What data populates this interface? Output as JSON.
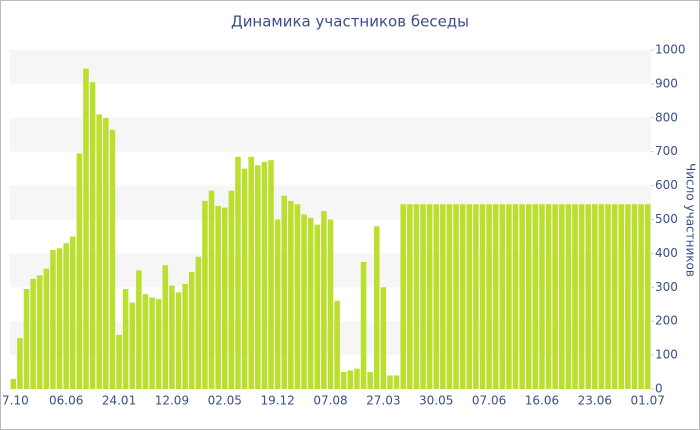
{
  "chart_data": {
    "type": "bar",
    "title": "Динамика участников беседы",
    "y_label": "Число участников",
    "categories": [
      "7.10",
      null,
      null,
      null,
      null,
      null,
      null,
      null,
      "06.06",
      null,
      null,
      null,
      null,
      null,
      null,
      null,
      "24.01",
      null,
      null,
      null,
      null,
      null,
      null,
      null,
      "12.09",
      null,
      null,
      null,
      null,
      null,
      null,
      null,
      "02.05",
      null,
      null,
      null,
      null,
      null,
      null,
      null,
      "19.12",
      null,
      null,
      null,
      null,
      null,
      null,
      null,
      "07.08",
      null,
      null,
      null,
      null,
      null,
      null,
      null,
      "27.03",
      null,
      null,
      null,
      null,
      null,
      null,
      null,
      "30.05",
      null,
      null,
      null,
      null,
      null,
      null,
      null,
      "07.06",
      null,
      null,
      null,
      null,
      null,
      null,
      null,
      "16.06",
      null,
      null,
      null,
      null,
      null,
      null,
      null,
      "23.06",
      null,
      null,
      null,
      null,
      null,
      null,
      null,
      "01.07"
    ],
    "values": [
      30,
      150,
      295,
      325,
      335,
      355,
      410,
      415,
      430,
      450,
      695,
      945,
      905,
      810,
      800,
      765,
      160,
      295,
      255,
      350,
      280,
      270,
      265,
      365,
      305,
      285,
      310,
      345,
      390,
      555,
      585,
      540,
      535,
      585,
      685,
      650,
      685,
      660,
      670,
      675,
      500,
      570,
      555,
      545,
      515,
      505,
      485,
      525,
      500,
      260,
      50,
      55,
      60,
      375,
      50,
      480,
      300,
      40,
      40,
      545,
      545,
      545,
      545,
      545,
      545,
      545,
      545,
      545,
      545,
      545,
      545,
      545,
      545,
      545,
      545,
      545,
      545,
      545,
      545,
      545,
      545,
      545,
      545,
      545,
      545,
      545,
      545,
      545,
      545,
      545,
      545,
      545,
      545,
      545,
      545,
      545,
      545
    ],
    "color": "#bbdf2f",
    "ylim": [
      0,
      1000
    ],
    "yticks": [
      0,
      100,
      200,
      300,
      400,
      500,
      600,
      700,
      800,
      900,
      1000
    ],
    "y_axis_side": "right",
    "banded_background": true
  }
}
